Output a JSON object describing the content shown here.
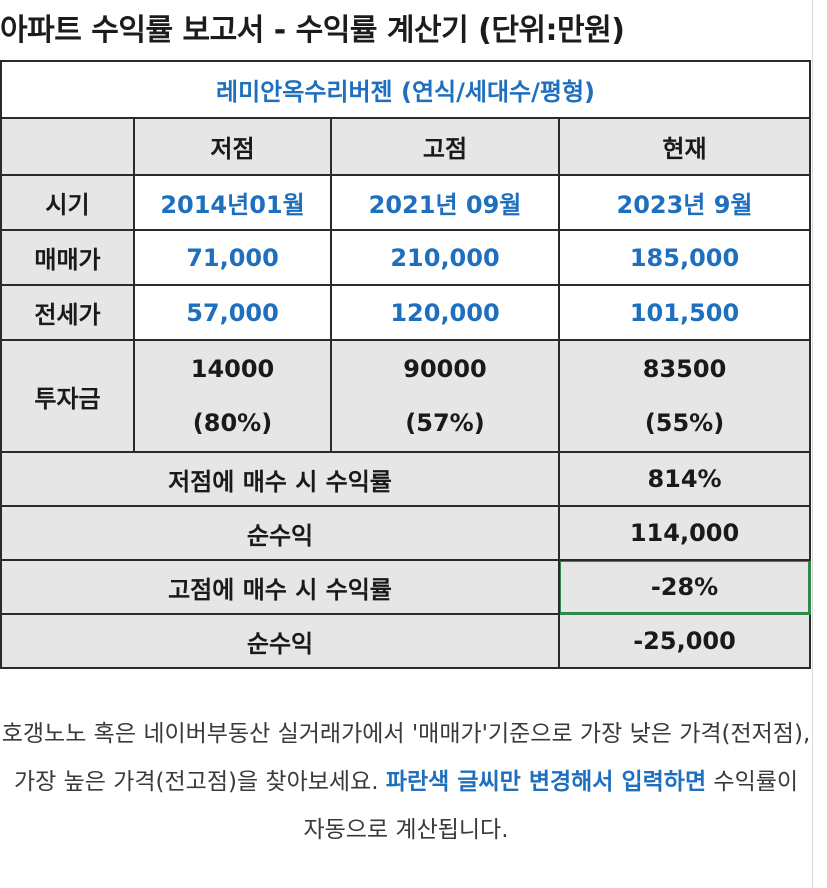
{
  "title": "아파트 수익률 보고서 - 수익률 계산기 (단위:만원)",
  "subtitle": "레미안옥수리버젠 (연식/세대수/평형)",
  "columns": [
    "저점",
    "고점",
    "현재"
  ],
  "rows": {
    "period": {
      "label": "시기",
      "values": [
        "2014년01월",
        "2021년 09월",
        "2023년 9월"
      ]
    },
    "sale_price": {
      "label": "매매가",
      "values": [
        "71,000",
        "210,000",
        "185,000"
      ]
    },
    "jeonse_price": {
      "label": "전세가",
      "values": [
        "57,000",
        "120,000",
        "101,500"
      ]
    },
    "investment": {
      "label": "투자금",
      "amounts": [
        "14000",
        "90000",
        "83500"
      ],
      "ratios": [
        "(80%)",
        "(57%)",
        "(55%)"
      ]
    }
  },
  "summary": {
    "low_return": {
      "label": "저점에 매수 시 수익률",
      "value": "814%"
    },
    "low_profit": {
      "label": "순수익",
      "value": "114,000"
    },
    "high_return": {
      "label": "고점에 매수 시 수익률",
      "value": "-28%"
    },
    "high_profit": {
      "label": "순수익",
      "value": "-25,000"
    }
  },
  "note": {
    "part1": "호갱노노 혹은 네이버부동산 실거래가에서 '매매가'기준으로 가장 낮은 가격(전저점), 가장 높은 가격(전고점)을 찾아보세요. ",
    "highlight": "파란색 글씨만 변경해서 입력하면",
    "part2": " 수익률이 자동으로 계산됩니다."
  },
  "colors": {
    "input_text": "#1f6fbf",
    "header_fill": "#e6e6e6",
    "selection": "#2f8a4a"
  }
}
